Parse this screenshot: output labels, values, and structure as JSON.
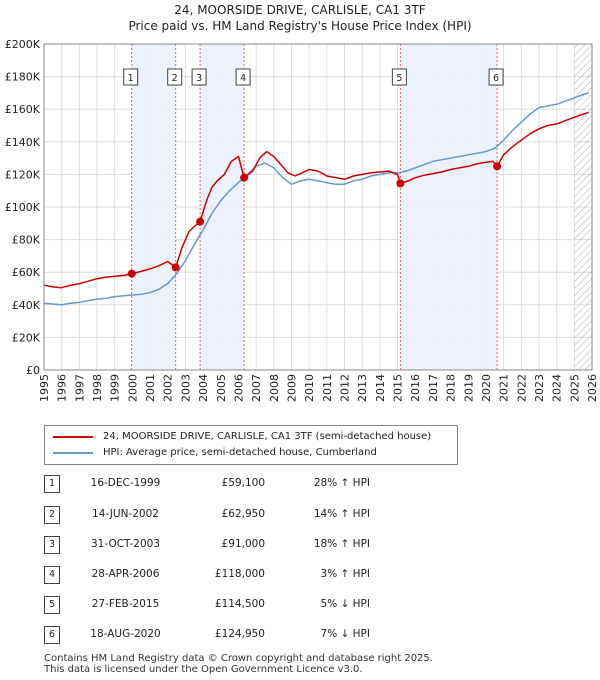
{
  "title": {
    "line1": "24, MOORSIDE DRIVE, CARLISLE, CA1 3TF",
    "line2": "Price paid vs. HM Land Registry's House Price Index (HPI)"
  },
  "colors": {
    "price": "#cc0000",
    "hpi": "#6699cc",
    "highlight": "#eaf0fb",
    "grid": "#dddddd",
    "hatch": "#999999"
  },
  "legend": {
    "price_label": "24, MOORSIDE DRIVE, CARLISLE, CA1 3TF (semi-detached house)",
    "hpi_label": "HPI: Average price, semi-detached house, Cumberland"
  },
  "transactions": [
    {
      "num": "1",
      "date": "16-DEC-1999",
      "price": "£59,100",
      "hpi": "28% ↑ HPI"
    },
    {
      "num": "2",
      "date": "14-JUN-2002",
      "price": "£62,950",
      "hpi": "14% ↑ HPI"
    },
    {
      "num": "3",
      "date": "31-OCT-2003",
      "price": "£91,000",
      "hpi": "18% ↑ HPI"
    },
    {
      "num": "4",
      "date": "28-APR-2006",
      "price": "£118,000",
      "hpi": "3% ↑ HPI"
    },
    {
      "num": "5",
      "date": "27-FEB-2015",
      "price": "£114,500",
      "hpi": "5% ↓ HPI"
    },
    {
      "num": "6",
      "date": "18-AUG-2020",
      "price": "£124,950",
      "hpi": "7% ↓ HPI"
    }
  ],
  "footer": {
    "line1": "Contains HM Land Registry data © Crown copyright and database right 2025.",
    "line2": "This data is licensed under the Open Government Licence v3.0."
  },
  "chart_data": {
    "type": "line",
    "title": "24, MOORSIDE DRIVE, CARLISLE, CA1 3TF — Price paid vs. HM Land Registry's House Price Index (HPI)",
    "xlim": [
      1995,
      2026
    ],
    "ylim": [
      0,
      200000
    ],
    "x_ticks": [
      1995,
      1996,
      1997,
      1998,
      1999,
      2000,
      2001,
      2002,
      2003,
      2004,
      2005,
      2006,
      2007,
      2008,
      2009,
      2010,
      2011,
      2012,
      2013,
      2014,
      2015,
      2016,
      2017,
      2018,
      2019,
      2020,
      2021,
      2022,
      2023,
      2024,
      2025,
      2026
    ],
    "y_ticks": [
      {
        "value": 0,
        "label": "£0"
      },
      {
        "value": 20000,
        "label": "£20K"
      },
      {
        "value": 40000,
        "label": "£40K"
      },
      {
        "value": 60000,
        "label": "£60K"
      },
      {
        "value": 80000,
        "label": "£80K"
      },
      {
        "value": 100000,
        "label": "£100K"
      },
      {
        "value": 120000,
        "label": "£120K"
      },
      {
        "value": 140000,
        "label": "£140K"
      },
      {
        "value": 160000,
        "label": "£160K"
      },
      {
        "value": 180000,
        "label": "£180K"
      },
      {
        "value": 200000,
        "label": "£200K"
      }
    ],
    "highlight_ranges": [
      [
        1999.96,
        2002.45
      ],
      [
        2003.83,
        2006.32
      ],
      [
        2015.16,
        2020.63
      ]
    ],
    "forecast_start": 2025.0,
    "markers": [
      {
        "label": "1",
        "x": 1999.96,
        "y": 59100
      },
      {
        "label": "2",
        "x": 2002.45,
        "y": 62950
      },
      {
        "label": "3",
        "x": 2003.83,
        "y": 91000
      },
      {
        "label": "4",
        "x": 2006.32,
        "y": 118000
      },
      {
        "label": "5",
        "x": 2015.16,
        "y": 114500
      },
      {
        "label": "6",
        "x": 2020.63,
        "y": 124950
      }
    ],
    "series": [
      {
        "name": "24, MOORSIDE DRIVE, CARLISLE, CA1 3TF (semi-detached house)",
        "color": "#cc0000",
        "x": [
          1995.0,
          1995.5,
          1996.0,
          1996.5,
          1997.0,
          1997.5,
          1998.0,
          1998.5,
          1999.0,
          1999.5,
          1999.96,
          2000.5,
          2001.0,
          2001.5,
          2002.0,
          2002.45,
          2002.8,
          2003.2,
          2003.5,
          2003.83,
          2004.2,
          2004.5,
          2004.8,
          2005.2,
          2005.6,
          2006.0,
          2006.32,
          2006.8,
          2007.2,
          2007.6,
          2008.0,
          2008.4,
          2008.8,
          2009.2,
          2009.6,
          2010.0,
          2010.5,
          2011.0,
          2011.5,
          2012.0,
          2012.5,
          2013.0,
          2013.5,
          2014.0,
          2014.5,
          2015.0,
          2015.16,
          2015.6,
          2016.0,
          2016.5,
          2017.0,
          2017.5,
          2018.0,
          2018.5,
          2019.0,
          2019.5,
          2020.0,
          2020.4,
          2020.63,
          2021.0,
          2021.5,
          2022.0,
          2022.5,
          2023.0,
          2023.5,
          2024.0,
          2024.5,
          2025.0,
          2025.5,
          2025.8
        ],
        "y": [
          52000,
          51000,
          50500,
          52000,
          53000,
          54500,
          56000,
          57000,
          57500,
          58000,
          59100,
          60500,
          62000,
          64000,
          66500,
          62950,
          75000,
          85000,
          88000,
          91000,
          104000,
          112000,
          116000,
          120000,
          128000,
          131000,
          118000,
          122000,
          130000,
          134000,
          131000,
          126000,
          121000,
          119000,
          121000,
          123000,
          122000,
          119000,
          118000,
          117000,
          119000,
          120000,
          121000,
          121500,
          122000,
          120000,
          114500,
          116000,
          118000,
          119500,
          120500,
          121500,
          123000,
          124000,
          125000,
          126500,
          127500,
          128000,
          124950,
          132000,
          137000,
          141000,
          145000,
          148000,
          150000,
          151000,
          153000,
          155000,
          157000,
          158000
        ]
      },
      {
        "name": "HPI: Average price, semi-detached house, Cumberland",
        "color": "#6699cc",
        "x": [
          1995.0,
          1995.5,
          1996.0,
          1996.5,
          1997.0,
          1997.5,
          1998.0,
          1998.5,
          1999.0,
          1999.5,
          2000.0,
          2000.5,
          2001.0,
          2001.5,
          2002.0,
          2002.5,
          2003.0,
          2003.5,
          2004.0,
          2004.5,
          2005.0,
          2005.5,
          2006.0,
          2006.5,
          2007.0,
          2007.5,
          2008.0,
          2008.5,
          2009.0,
          2009.5,
          2010.0,
          2010.5,
          2011.0,
          2011.5,
          2012.0,
          2012.5,
          2013.0,
          2013.5,
          2014.0,
          2014.5,
          2015.0,
          2015.5,
          2016.0,
          2016.5,
          2017.0,
          2017.5,
          2018.0,
          2018.5,
          2019.0,
          2019.5,
          2020.0,
          2020.5,
          2021.0,
          2021.5,
          2022.0,
          2022.5,
          2023.0,
          2023.5,
          2024.0,
          2024.5,
          2025.0,
          2025.5,
          2025.8
        ],
        "y": [
          41000,
          40500,
          40000,
          41000,
          41500,
          42500,
          43500,
          44000,
          45000,
          45500,
          46000,
          46500,
          47500,
          49500,
          53000,
          59000,
          67000,
          77000,
          86000,
          96000,
          104000,
          110000,
          115000,
          120000,
          125000,
          127000,
          124000,
          118000,
          114000,
          116000,
          117000,
          116000,
          115000,
          114000,
          114000,
          116000,
          117000,
          119000,
          120000,
          121000,
          121000,
          122000,
          124000,
          126000,
          128000,
          129000,
          130000,
          131000,
          132000,
          133000,
          134000,
          136000,
          141000,
          147000,
          152000,
          157000,
          161000,
          162000,
          163000,
          165000,
          167000,
          169000,
          170000
        ]
      }
    ]
  }
}
